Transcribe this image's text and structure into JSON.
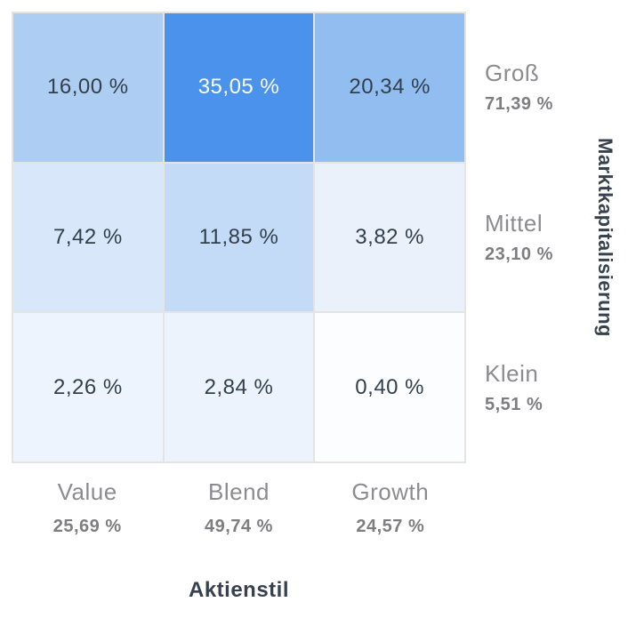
{
  "chart_data": {
    "type": "heatmap",
    "x_axis_title": "Aktienstil",
    "y_axis_title": "Marktkapitalisierung",
    "columns": [
      {
        "label": "Value",
        "total": "25,69 %",
        "total_numeric": 25.69
      },
      {
        "label": "Blend",
        "total": "49,74 %",
        "total_numeric": 49.74
      },
      {
        "label": "Growth",
        "total": "24,57 %",
        "total_numeric": 24.57
      }
    ],
    "rows": [
      {
        "label": "Groß",
        "total": "71,39 %",
        "total_numeric": 71.39
      },
      {
        "label": "Mittel",
        "total": "23,10 %",
        "total_numeric": 23.1
      },
      {
        "label": "Klein",
        "total": "5,51 %",
        "total_numeric": 5.51
      }
    ],
    "values_numeric": [
      [
        16.0,
        35.05,
        20.34
      ],
      [
        7.42,
        11.85,
        3.82
      ],
      [
        2.26,
        2.84,
        0.4
      ]
    ],
    "cells": [
      [
        {
          "value": "16,00 %",
          "bg": "#adcdf2",
          "fg": "#32404c"
        },
        {
          "value": "35,05 %",
          "bg": "#4a92ec",
          "fg": "#ffffff"
        },
        {
          "value": "20,34 %",
          "bg": "#92bdf0",
          "fg": "#32404c"
        }
      ],
      [
        {
          "value": "7,42 %",
          "bg": "#d8e7f9",
          "fg": "#32404c"
        },
        {
          "value": "11,85 %",
          "bg": "#c3dbf7",
          "fg": "#32404c"
        },
        {
          "value": "3,82 %",
          "bg": "#eaf1fb",
          "fg": "#32404c"
        }
      ],
      [
        {
          "value": "2,26 %",
          "bg": "#eef4fd",
          "fg": "#32404c"
        },
        {
          "value": "2,84 %",
          "bg": "#edf3fc",
          "fg": "#32404c"
        },
        {
          "value": "0,40 %",
          "bg": "#fcfdff",
          "fg": "#32404c"
        }
      ]
    ],
    "colors": {
      "max_cell": "#4a92ec",
      "min_cell": "#fcfdff",
      "grid_line": "#e4e4e4",
      "category_label": "#8c8c90",
      "category_total": "#7e7e82",
      "axis_title": "#37424e"
    },
    "layout": {
      "legend": "none",
      "grid": "on",
      "y_title_position": "right-rotated",
      "x_title_position": "bottom-center"
    }
  }
}
